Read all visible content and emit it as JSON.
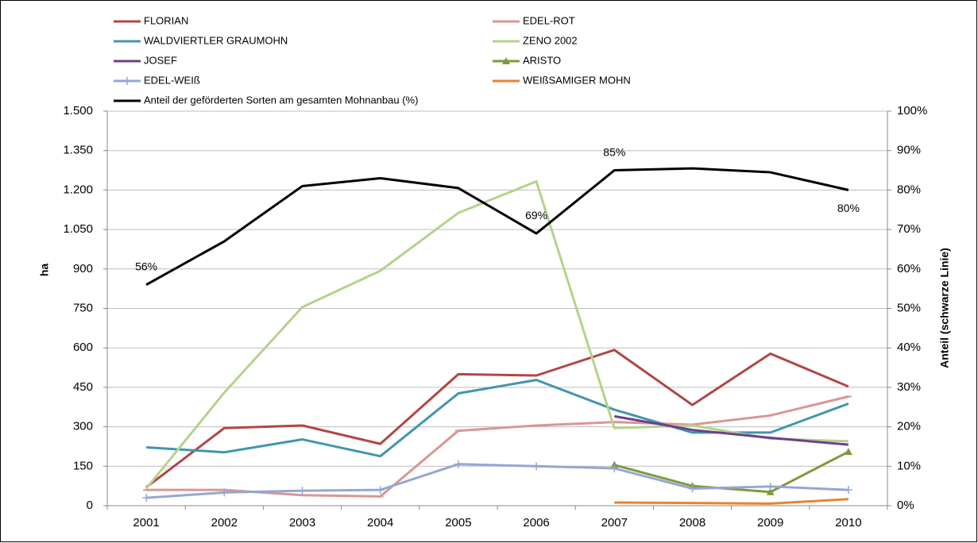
{
  "chart_data": {
    "type": "line",
    "categories": [
      "2001",
      "2002",
      "2003",
      "2004",
      "2005",
      "2006",
      "2007",
      "2008",
      "2009",
      "2010"
    ],
    "ylabel": "ha",
    "y2label": "Anteil (schwarze Linie)",
    "ylim": [
      0,
      1500
    ],
    "yticks": [
      0,
      150,
      300,
      450,
      600,
      750,
      900,
      {
        "value": 1050,
        "label": "1.050"
      },
      {
        "value": 1200,
        "label": "1.200"
      },
      {
        "value": 1350,
        "label": "1.350"
      },
      {
        "value": 1500,
        "label": "1.500"
      }
    ],
    "y2lim": [
      0,
      100
    ],
    "y2ticks": [
      {
        "value": 0,
        "label": "0%"
      },
      {
        "value": 10,
        "label": "10%"
      },
      {
        "value": 20,
        "label": "20%"
      },
      {
        "value": 30,
        "label": "30%"
      },
      {
        "value": 40,
        "label": "40%"
      },
      {
        "value": 50,
        "label": "50%"
      },
      {
        "value": 60,
        "label": "60%"
      },
      {
        "value": 70,
        "label": "70%"
      },
      {
        "value": 80,
        "label": "80%"
      },
      {
        "value": 90,
        "label": "90%"
      },
      {
        "value": 100,
        "label": "100%"
      }
    ],
    "grid": true,
    "legend": "top",
    "series": [
      {
        "name": "FLORIAN",
        "color": "#b04745",
        "values": [
          70,
          295,
          305,
          235,
          500,
          495,
          592,
          383,
          578,
          453
        ]
      },
      {
        "name": "EDEL-ROT",
        "color": "#d99694",
        "marker": "dash",
        "values": [
          60,
          60,
          40,
          35,
          285,
          305,
          318,
          308,
          343,
          415
        ]
      },
      {
        "name": "WALDVIERTLER GRAUMOHN",
        "color": "#4196ad",
        "values": [
          222,
          203,
          252,
          188,
          427,
          478,
          365,
          278,
          278,
          388
        ]
      },
      {
        "name": "ZENO 2002",
        "color": "#b3d38b",
        "values": [
          65,
          430,
          755,
          893,
          1113,
          1233,
          295,
          305,
          255,
          245
        ]
      },
      {
        "name": "JOSEF",
        "color": "#6f3f8c",
        "values": [
          null,
          null,
          null,
          null,
          null,
          null,
          340,
          288,
          258,
          232
        ]
      },
      {
        "name": "ARISTO",
        "color": "#7f9a3a",
        "marker": "triangle",
        "values": [
          null,
          null,
          null,
          null,
          null,
          null,
          155,
          75,
          52,
          205
        ]
      },
      {
        "name": "EDEL-WEIß",
        "color": "#93a7d6",
        "marker": "plus",
        "values": [
          30,
          50,
          57,
          60,
          158,
          150,
          142,
          65,
          73,
          60
        ]
      },
      {
        "name": "WEIßSAMIGER MOHN",
        "color": "#e6842f",
        "values": [
          null,
          null,
          null,
          null,
          null,
          null,
          12,
          10,
          8,
          25
        ]
      },
      {
        "name": "Anteil der geförderten Sorten am gesamten Mohnanbau (%)",
        "color": "#000000",
        "axis": "y2",
        "values": [
          56,
          67,
          81,
          83,
          80.5,
          69,
          85,
          85.5,
          84.5,
          80
        ],
        "value_labels": [
          "56%",
          null,
          null,
          null,
          null,
          "69%",
          "85%",
          null,
          null,
          "80%"
        ]
      }
    ]
  }
}
